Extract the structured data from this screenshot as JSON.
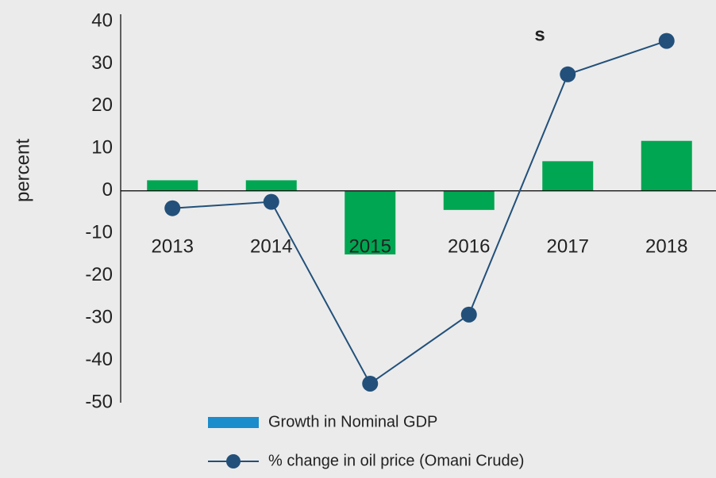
{
  "chart_data": {
    "type": "bar_line",
    "title": "s",
    "y_label": "percent",
    "categories": [
      "2013",
      "2014",
      "2015",
      "2016",
      "2017",
      "2018"
    ],
    "series": [
      {
        "name": "Growth in Nominal GDP",
        "type": "bar",
        "color": "#00a651",
        "legend_color": "#1b8ccc",
        "values": [
          2.5,
          2.5,
          -15,
          -4.5,
          7,
          11.8
        ]
      },
      {
        "name": "% change in oil price (Omani Crude)",
        "type": "line",
        "color": "#22507a",
        "values": [
          -4.1,
          -2.6,
          -45.5,
          -29.2,
          27.5,
          35.4
        ]
      }
    ],
    "ylim": [
      -50,
      40
    ],
    "yticks": [
      -50,
      -40,
      -30,
      -20,
      -10,
      0,
      10,
      20,
      30,
      40
    ]
  }
}
